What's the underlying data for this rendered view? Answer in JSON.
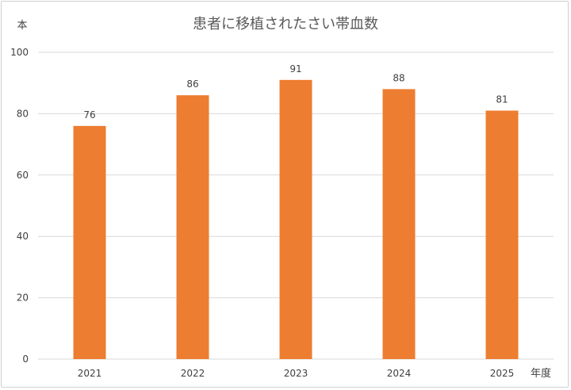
{
  "chart_data": {
    "type": "bar",
    "title": "患者に移植されたさい帯血数",
    "xlabel": "年度",
    "ylabel": "本",
    "categories": [
      "2021",
      "2022",
      "2023",
      "2024",
      "2025"
    ],
    "values": [
      76,
      86,
      91,
      88,
      81
    ],
    "ylim": [
      0,
      100
    ],
    "yticks": [
      0,
      20,
      40,
      60,
      80,
      100
    ],
    "grid": true,
    "data_labels": true,
    "bar_color": "#ED7D31",
    "grid_color": "#D9D9D9"
  }
}
